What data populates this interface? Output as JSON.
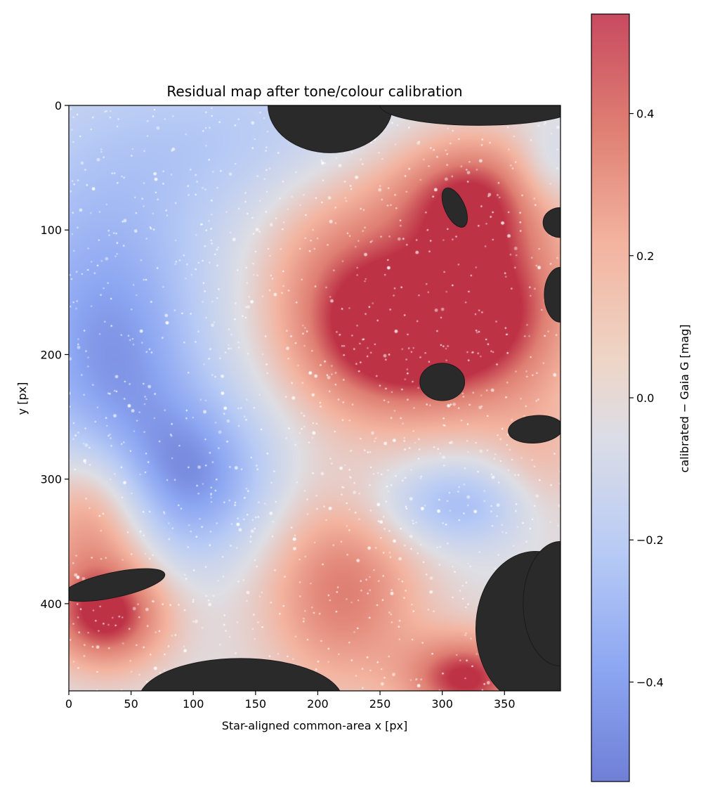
{
  "chart_data": {
    "type": "heatmap",
    "title": "Residual map after tone/colour calibration",
    "xlabel": "Star-aligned common-area x [px]",
    "ylabel": "y [px]",
    "xlim": [
      0,
      395
    ],
    "ylim": [
      470,
      0
    ],
    "x_ticks": [
      0,
      50,
      100,
      150,
      200,
      250,
      300,
      350
    ],
    "y_ticks": [
      0,
      100,
      200,
      300,
      400
    ],
    "colormap": "coolwarm",
    "colorbar": {
      "label": "calibrated − Gaia G [mag]",
      "range": [
        -0.54,
        0.54
      ],
      "ticks": [
        0.4,
        0.2,
        0.0,
        -0.2,
        -0.4
      ],
      "tick_labels": [
        "0.4",
        "0.2",
        "0.0",
        "−0.2",
        "−0.4"
      ]
    },
    "residual_field": {
      "baseline": 0.0,
      "components": [
        {
          "x": 20,
          "y": 150,
          "sx": 70,
          "sy": 100,
          "amp": -0.3
        },
        {
          "x": 100,
          "y": 300,
          "sx": 45,
          "sy": 45,
          "amp": -0.4
        },
        {
          "x": 40,
          "y": 230,
          "sx": 45,
          "sy": 70,
          "amp": -0.22
        },
        {
          "x": 150,
          "y": 25,
          "sx": 90,
          "sy": 50,
          "amp": -0.18
        },
        {
          "x": 310,
          "y": 320,
          "sx": 45,
          "sy": 25,
          "amp": -0.3
        },
        {
          "x": 385,
          "y": 50,
          "sx": 20,
          "sy": 25,
          "amp": -0.15
        },
        {
          "x": 260,
          "y": 190,
          "sx": 55,
          "sy": 45,
          "amp": 0.55
        },
        {
          "x": 340,
          "y": 160,
          "sx": 50,
          "sy": 55,
          "amp": 0.5
        },
        {
          "x": 320,
          "y": 70,
          "sx": 45,
          "sy": 35,
          "amp": 0.45
        },
        {
          "x": 220,
          "y": 120,
          "sx": 50,
          "sy": 55,
          "amp": 0.3
        },
        {
          "x": 220,
          "y": 390,
          "sx": 45,
          "sy": 55,
          "amp": 0.4
        },
        {
          "x": 20,
          "y": 330,
          "sx": 35,
          "sy": 45,
          "amp": 0.4
        },
        {
          "x": 30,
          "y": 410,
          "sx": 35,
          "sy": 30,
          "amp": 0.55
        },
        {
          "x": 320,
          "y": 460,
          "sx": 35,
          "sy": 25,
          "amp": 0.55
        },
        {
          "x": 380,
          "y": 290,
          "sx": 30,
          "sy": 40,
          "amp": 0.15
        }
      ]
    },
    "masked_regions": [
      {
        "cx": 210,
        "cy": 0,
        "rx": 50,
        "ry": 38,
        "rotate": 0
      },
      {
        "cx": 330,
        "cy": 0,
        "rx": 80,
        "ry": 16,
        "rotate": 0
      },
      {
        "cx": 310,
        "cy": 82,
        "rx": 8,
        "ry": 17,
        "rotate": -25
      },
      {
        "cx": 395,
        "cy": 94,
        "rx": 14,
        "ry": 12,
        "rotate": 0
      },
      {
        "cx": 395,
        "cy": 152,
        "rx": 13,
        "ry": 22,
        "rotate": 0
      },
      {
        "cx": 300,
        "cy": 222,
        "rx": 18,
        "ry": 15,
        "rotate": 0
      },
      {
        "cx": 375,
        "cy": 260,
        "rx": 22,
        "ry": 11,
        "rotate": -5
      },
      {
        "cx": 36,
        "cy": 385,
        "rx": 42,
        "ry": 10,
        "rotate": -12
      },
      {
        "cx": 138,
        "cy": 478,
        "rx": 82,
        "ry": 34,
        "rotate": 0
      },
      {
        "cx": 375,
        "cy": 420,
        "rx": 48,
        "ry": 62,
        "rotate": 0
      },
      {
        "cx": 395,
        "cy": 400,
        "rx": 30,
        "ry": 50,
        "rotate": 0
      }
    ],
    "grid": false,
    "legend": "none"
  }
}
